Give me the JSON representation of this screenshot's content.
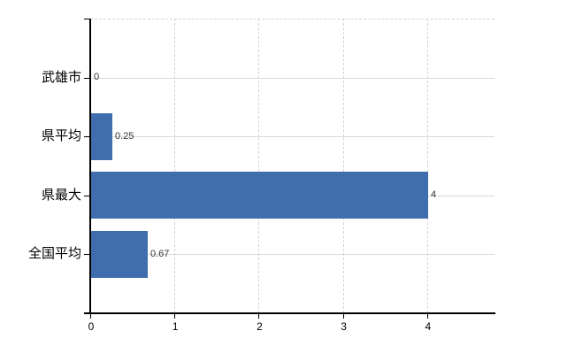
{
  "chart_data": {
    "type": "bar",
    "orientation": "horizontal",
    "title": "",
    "categories": [
      "武雄市",
      "県平均",
      "県最大",
      "全国平均"
    ],
    "values": [
      0,
      0.25,
      4,
      0.67
    ],
    "value_labels": [
      "0",
      "0.25",
      "4",
      "0.67"
    ],
    "xlim": [
      0,
      4.8
    ],
    "xticks": [
      0,
      1,
      2,
      3,
      4
    ],
    "xtick_labels": [
      "0",
      "1",
      "2",
      "3",
      "4"
    ],
    "grid": {
      "vertical_style": "dashed",
      "horizontal_style": "solid",
      "top_border_style": "dashed",
      "legend_position": "none"
    },
    "colors": {
      "bar": "#3f6dae",
      "axis": "#000000",
      "horizontal_grid": "#d5dccf",
      "vertical_grid": "#d8d2d2",
      "category_label": "#000000",
      "value_label": "#333333",
      "tick_label": "#000000",
      "background": "#ffffff"
    }
  }
}
